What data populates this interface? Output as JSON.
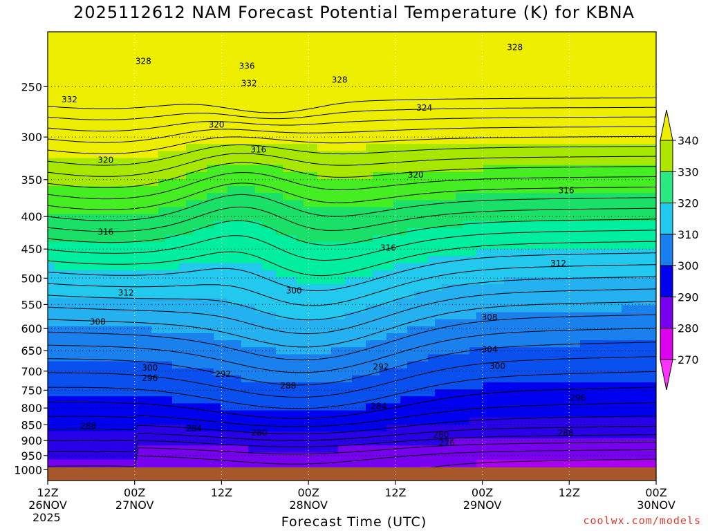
{
  "title": "2025112612 NAM Forecast Potential Temperature (K) for KBNA",
  "credit": "coolwx.com/models",
  "colors": {
    "bands": [
      "#ff33ff",
      "#dd00ee",
      "#aa00ee",
      "#7700ee",
      "#2a00e8",
      "#0000ee",
      "#0a50ee",
      "#1a80ee",
      "#25b0f0",
      "#22c8ee",
      "#00eea0",
      "#1ae068",
      "#44ee22",
      "#a8e800",
      "#eeee00"
    ],
    "ground": "#a8572b"
  },
  "chart_data": {
    "type": "heatmap",
    "subtype": "time-height contour",
    "title": "2025112612 NAM Forecast Potential Temperature (K) for KBNA",
    "xlabel": "Forecast Time (UTC)",
    "ylabel": "",
    "x_ticks": [
      {
        "hour": 0,
        "lines": [
          "12Z",
          "26NOV",
          "2025"
        ]
      },
      {
        "hour": 12,
        "lines": [
          "00Z",
          "27NOV"
        ]
      },
      {
        "hour": 24,
        "lines": [
          "12Z"
        ]
      },
      {
        "hour": 36,
        "lines": [
          "00Z",
          "28NOV"
        ]
      },
      {
        "hour": 48,
        "lines": [
          "12Z"
        ]
      },
      {
        "hour": 60,
        "lines": [
          "00Z",
          "29NOV"
        ]
      },
      {
        "hour": 72,
        "lines": [
          "12Z"
        ]
      },
      {
        "hour": 84,
        "lines": [
          "00Z",
          "30NOV"
        ]
      }
    ],
    "x_range_hours": [
      0,
      84
    ],
    "pressure_levels_hpa": [
      1000,
      950,
      900,
      850,
      800,
      750,
      700,
      650,
      600,
      550,
      500,
      450,
      400,
      350,
      300,
      250
    ],
    "y_range_hpa": [
      1040,
      205
    ],
    "colorbar": {
      "labels": [
        "340",
        "330",
        "320",
        "310",
        "300",
        "290",
        "280",
        "270"
      ],
      "values": [
        340,
        330,
        320,
        310,
        300,
        290,
        280,
        270
      ]
    },
    "contour_interval_k": 2,
    "contour_labels": [
      {
        "text": "328",
        "hour": 13.2,
        "p": 228
      },
      {
        "text": "332",
        "hour": 3.0,
        "p": 262
      },
      {
        "text": "336",
        "hour": 27.5,
        "p": 232
      },
      {
        "text": "332",
        "hour": 27.8,
        "p": 247
      },
      {
        "text": "328",
        "hour": 40.3,
        "p": 244
      },
      {
        "text": "328",
        "hour": 64.5,
        "p": 217
      },
      {
        "text": "324",
        "hour": 52.0,
        "p": 270
      },
      {
        "text": "320",
        "hour": 23.3,
        "p": 287
      },
      {
        "text": "316",
        "hour": 29.1,
        "p": 314
      },
      {
        "text": "320",
        "hour": 8.0,
        "p": 326
      },
      {
        "text": "320",
        "hour": 50.8,
        "p": 344
      },
      {
        "text": "316",
        "hour": 71.6,
        "p": 364
      },
      {
        "text": "316",
        "hour": 8.0,
        "p": 423
      },
      {
        "text": "316",
        "hour": 47.0,
        "p": 448
      },
      {
        "text": "312",
        "hour": 70.5,
        "p": 474
      },
      {
        "text": "312",
        "hour": 10.8,
        "p": 527
      },
      {
        "text": "300",
        "hour": 34.0,
        "p": 523
      },
      {
        "text": "308",
        "hour": 6.9,
        "p": 586
      },
      {
        "text": "308",
        "hour": 61.0,
        "p": 576
      },
      {
        "text": "304",
        "hour": 61.0,
        "p": 647
      },
      {
        "text": "300",
        "hour": 14.1,
        "p": 692
      },
      {
        "text": "300",
        "hour": 62.1,
        "p": 687
      },
      {
        "text": "292",
        "hour": 24.2,
        "p": 707
      },
      {
        "text": "292",
        "hour": 46.0,
        "p": 689
      },
      {
        "text": "296",
        "hour": 14.1,
        "p": 718
      },
      {
        "text": "288",
        "hour": 33.2,
        "p": 738
      },
      {
        "text": "296",
        "hour": 73.2,
        "p": 771
      },
      {
        "text": "284",
        "hour": 45.7,
        "p": 795
      },
      {
        "text": "288",
        "hour": 5.6,
        "p": 853
      },
      {
        "text": "284",
        "hour": 20.2,
        "p": 862
      },
      {
        "text": "280",
        "hour": 29.2,
        "p": 875
      },
      {
        "text": "280",
        "hour": 54.3,
        "p": 882
      },
      {
        "text": "288",
        "hour": 71.5,
        "p": 875
      },
      {
        "text": "276",
        "hour": 55.1,
        "p": 907
      }
    ]
  }
}
